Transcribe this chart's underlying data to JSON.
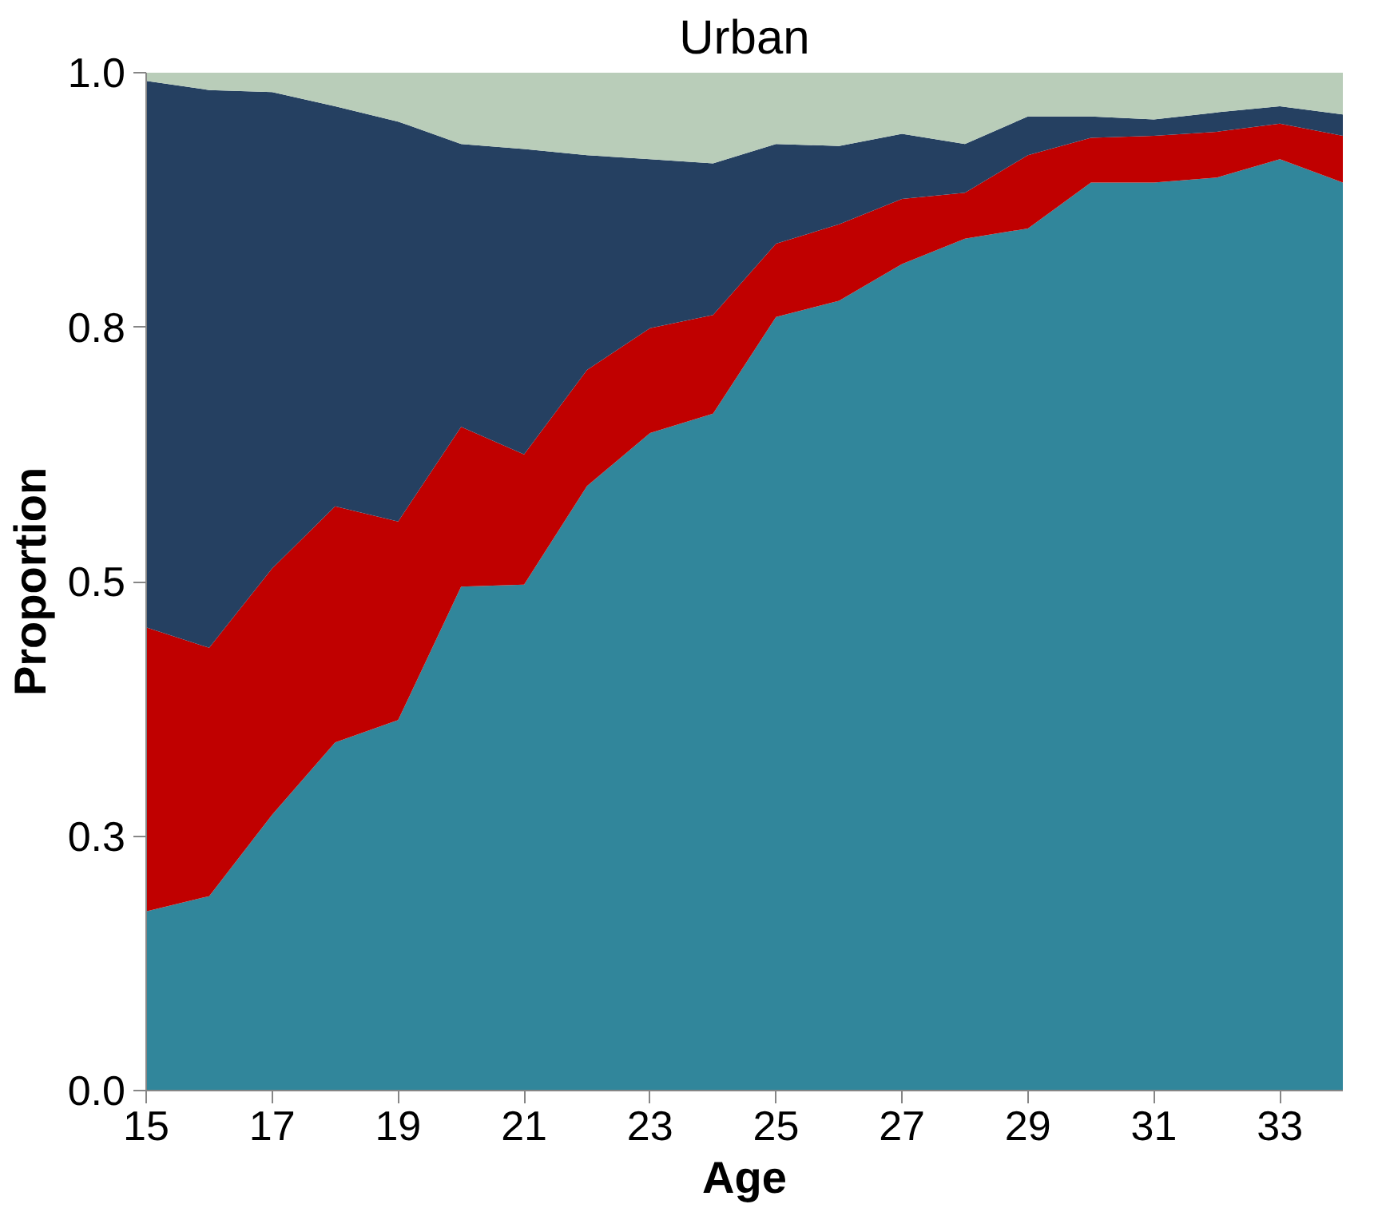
{
  "chart_data": {
    "type": "area",
    "title": "Urban",
    "xlabel": "Age",
    "ylabel": "Proportion",
    "stacked": true,
    "x": [
      15,
      16,
      17,
      18,
      19,
      20,
      21,
      22,
      23,
      24,
      25,
      26,
      27,
      28,
      29,
      30,
      31,
      32,
      33,
      34
    ],
    "xlim": [
      15,
      34
    ],
    "xticks": [
      15,
      17,
      19,
      21,
      23,
      25,
      27,
      29,
      31,
      33
    ],
    "ylim": [
      0,
      1
    ],
    "yticks": [
      {
        "value": 0,
        "label": "0.0"
      },
      {
        "value": 0.25,
        "label": "0.3"
      },
      {
        "value": 0.5,
        "label": "0.5"
      },
      {
        "value": 0.75,
        "label": "0.8"
      },
      {
        "value": 1,
        "label": "1.0"
      }
    ],
    "grid": false,
    "series": [
      {
        "color": "#31869b",
        "values": [
          0.176,
          0.191,
          0.271,
          0.342,
          0.364,
          0.495,
          0.497,
          0.594,
          0.646,
          0.665,
          0.76,
          0.776,
          0.812,
          0.837,
          0.847,
          0.892,
          0.892,
          0.897,
          0.915,
          0.892
        ]
      },
      {
        "color": "#c00000",
        "values": [
          0.279,
          0.244,
          0.242,
          0.232,
          0.195,
          0.157,
          0.128,
          0.114,
          0.103,
          0.097,
          0.072,
          0.075,
          0.064,
          0.045,
          0.072,
          0.044,
          0.046,
          0.045,
          0.035,
          0.046
        ]
      },
      {
        "color": "#254061",
        "values": [
          0.537,
          0.548,
          0.468,
          0.393,
          0.393,
          0.278,
          0.3,
          0.211,
          0.166,
          0.149,
          0.098,
          0.077,
          0.064,
          0.048,
          0.038,
          0.021,
          0.016,
          0.019,
          0.017,
          0.021
        ]
      },
      {
        "color": "#b9cdb9",
        "values": [
          0.008,
          0.017,
          0.019,
          0.033,
          0.048,
          0.07,
          0.075,
          0.081,
          0.085,
          0.089,
          0.07,
          0.072,
          0.06,
          0.07,
          0.043,
          0.043,
          0.046,
          0.039,
          0.033,
          0.041
        ]
      }
    ]
  }
}
